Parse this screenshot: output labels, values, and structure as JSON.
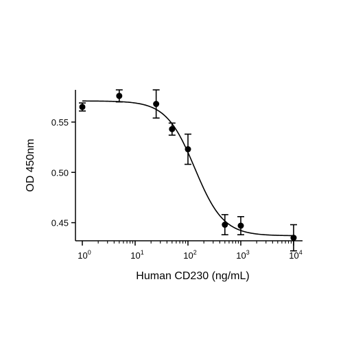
{
  "chart_data": {
    "type": "scatter",
    "title": "",
    "xlabel": "Human CD230 (ng/mL)",
    "ylabel": "OD 450nm",
    "x_scale": "log",
    "xlim": [
      1,
      10000
    ],
    "ylim": [
      0.432,
      0.582
    ],
    "x_ticks": [
      1,
      10,
      100,
      1000,
      10000
    ],
    "x_tick_labels": [
      {
        "base": "10",
        "exp": "0"
      },
      {
        "base": "10",
        "exp": "1"
      },
      {
        "base": "10",
        "exp": "2"
      },
      {
        "base": "10",
        "exp": "3"
      },
      {
        "base": "10",
        "exp": "4"
      }
    ],
    "y_ticks": [
      0.45,
      0.5,
      0.55
    ],
    "y_tick_labels": [
      "0.45",
      "0.50",
      "0.55"
    ],
    "grid": false,
    "legend": "none",
    "series": [
      {
        "x": [
          1,
          5,
          25,
          50,
          100,
          500,
          1000,
          10000
        ],
        "y": [
          0.565,
          0.576,
          0.568,
          0.543,
          0.523,
          0.448,
          0.447,
          0.435
        ],
        "error": [
          0.004,
          0.006,
          0.014,
          0.006,
          0.015,
          0.01,
          0.009,
          0.013
        ],
        "fit": "four-parameter logistic",
        "fit_params": {
          "top": 0.571,
          "bottom": 0.437,
          "ec50": 135,
          "hill": 1.6
        }
      }
    ],
    "colors": {
      "marks": "#000000"
    }
  }
}
